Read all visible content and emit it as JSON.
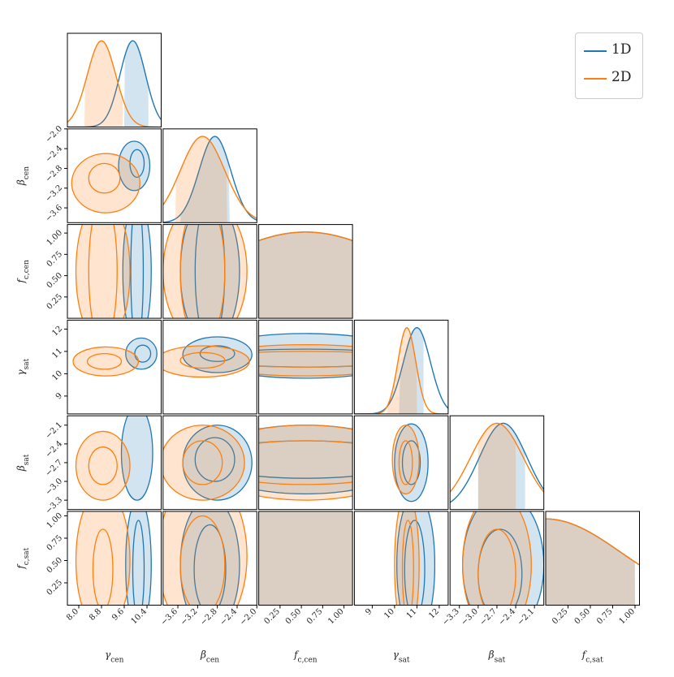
{
  "colors": {
    "1D": "#1f77b4",
    "2D": "#ff7f0e"
  },
  "legend": {
    "items": [
      {
        "label": "1D",
        "color": "#1f77b4"
      },
      {
        "label": "2D",
        "color": "#ff7f0e"
      }
    ]
  },
  "chart_data": {
    "type": "corner",
    "parameters": [
      {
        "key": "gcen",
        "label": "γ",
        "sub": "cen",
        "range": [
          7.6,
          10.9
        ],
        "ticks": [
          "8.0",
          "8.8",
          "9.6",
          "10.4"
        ],
        "tick_values": [
          8.0,
          8.8,
          9.6,
          10.4
        ]
      },
      {
        "key": "bcen",
        "label": "β",
        "sub": "cen",
        "range": [
          -3.9,
          -2.0
        ],
        "ticks": [
          "−3.6",
          "−3.2",
          "−2.8",
          "−2.4",
          "−2.0"
        ],
        "tick_values": [
          -3.6,
          -3.2,
          -2.8,
          -2.4,
          -2.0
        ]
      },
      {
        "key": "fccen",
        "label": "f",
        "sub": "c,cen",
        "range": [
          0.0,
          1.1
        ],
        "ticks": [
          "0.25",
          "0.50",
          "0.75",
          "1.00"
        ],
        "tick_values": [
          0.25,
          0.5,
          0.75,
          1.0
        ]
      },
      {
        "key": "gsat",
        "label": "γ",
        "sub": "sat",
        "range": [
          8.2,
          12.4
        ],
        "ticks": [
          "9",
          "10",
          "11",
          "12"
        ],
        "tick_values": [
          9,
          10,
          11,
          12
        ]
      },
      {
        "key": "bsat",
        "label": "β",
        "sub": "sat",
        "range": [
          -3.45,
          -1.95
        ],
        "ticks": [
          "−3.3",
          "−3.0",
          "−2.7",
          "−2.4",
          "−2.1"
        ],
        "tick_values": [
          -3.3,
          -3.0,
          -2.7,
          -2.4,
          -2.1
        ]
      },
      {
        "key": "fcsat",
        "label": "f",
        "sub": "c,sat",
        "range": [
          0.0,
          1.05
        ],
        "ticks": [
          "0.25",
          "0.50",
          "0.75",
          "1.00"
        ],
        "tick_values": [
          0.25,
          0.5,
          0.75,
          1.0
        ]
      }
    ],
    "series": [
      {
        "name": "1D",
        "marginals": [
          {
            "mean": 9.9,
            "sd": 0.45,
            "interval": [
              9.6,
              10.45
            ]
          },
          {
            "mean": -2.85,
            "sd": 0.32,
            "interval": [
              -3.55,
              -2.55
            ]
          },
          {
            "mean": 0.55,
            "sd": 1.2,
            "interval": [
              0.0,
              1.1
            ]
          },
          {
            "mean": 11.0,
            "sd": 0.6,
            "interval": [
              10.2,
              11.3
            ]
          },
          {
            "mean": -2.6,
            "sd": 0.38,
            "interval": [
              -3.0,
              -2.25
            ]
          },
          {
            "mean": 0.0,
            "sd": 0.85,
            "interval": [
              0.0,
              1.0
            ]
          }
        ],
        "contours": {
          "0-1": [
            {
              "cx": 9.95,
              "cy": -2.75,
              "rx": 0.55,
              "ry": 0.5,
              "fill": true
            },
            {
              "cx": 10.05,
              "cy": -2.7,
              "rx": 0.25,
              "ry": 0.28,
              "fill": false
            }
          ],
          "0-3": [
            {
              "cx": 10.2,
              "cy": 10.9,
              "rx": 0.55,
              "ry": 0.7,
              "fill": true
            },
            {
              "cx": 10.25,
              "cy": 10.9,
              "rx": 0.28,
              "ry": 0.38,
              "fill": false
            }
          ],
          "0-4": [
            {
              "cx": 10.05,
              "cy": -2.55,
              "rx": 0.55,
              "ry": 0.75,
              "fill": true
            }
          ],
          "0-2": [
            {
              "cx": 10.05,
              "cy": 0.55,
              "rx": 0.5,
              "ry": 0.85,
              "fill": true
            },
            {
              "cx": 10.05,
              "cy": 0.55,
              "rx": 0.22,
              "ry": 0.85,
              "fill": false
            }
          ],
          "0-5": [
            {
              "cx": 10.1,
              "cy": 0.45,
              "rx": 0.45,
              "ry": 0.75,
              "fill": true
            },
            {
              "cx": 10.1,
              "cy": 0.4,
              "rx": 0.2,
              "ry": 0.55,
              "fill": false
            }
          ],
          "1-2": [
            {
              "cx": -2.95,
              "cy": 0.55,
              "rx": 0.6,
              "ry": 0.85,
              "fill": true
            },
            {
              "cx": -2.95,
              "cy": 0.55,
              "rx": 0.3,
              "ry": 0.85,
              "fill": false
            }
          ],
          "1-3": [
            {
              "cx": -2.8,
              "cy": 10.85,
              "rx": 0.7,
              "ry": 0.8,
              "fill": true
            },
            {
              "cx": -2.8,
              "cy": 10.9,
              "rx": 0.35,
              "ry": 0.35,
              "fill": false
            }
          ],
          "1-4": [
            {
              "cx": -2.8,
              "cy": -2.7,
              "rx": 0.7,
              "ry": 0.6,
              "fill": true
            },
            {
              "cx": -2.85,
              "cy": -2.65,
              "rx": 0.4,
              "ry": 0.35,
              "fill": false
            }
          ],
          "1-5": [
            {
              "cx": -2.95,
              "cy": 0.45,
              "rx": 0.6,
              "ry": 0.75,
              "fill": true
            },
            {
              "cx": -2.95,
              "cy": 0.4,
              "rx": 0.32,
              "ry": 0.5,
              "fill": false
            }
          ],
          "2-3": [
            {
              "cx": 0.55,
              "cy": 10.8,
              "rx": 1.2,
              "ry": 1.0,
              "fill": true
            },
            {
              "cx": 0.55,
              "cy": 10.7,
              "rx": 1.2,
              "ry": 0.4,
              "fill": false
            }
          ],
          "2-4": [
            {
              "cx": 0.55,
              "cy": -2.65,
              "rx": 1.2,
              "ry": 0.55,
              "fill": true
            },
            {
              "cx": 0.55,
              "cy": -2.65,
              "rx": 1.2,
              "ry": 0.3,
              "fill": false
            }
          ],
          "2-5": [
            {
              "cx": 0.55,
              "cy": 0.5,
              "rx": 1.2,
              "ry": 1.0,
              "fill": true
            }
          ],
          "3-4": [
            {
              "cx": 10.75,
              "cy": -2.7,
              "rx": 0.75,
              "ry": 0.62,
              "fill": true
            },
            {
              "cx": 10.75,
              "cy": -2.7,
              "rx": 0.4,
              "ry": 0.35,
              "fill": false
            }
          ],
          "3-5": [
            {
              "cx": 10.95,
              "cy": 0.45,
              "rx": 0.85,
              "ry": 0.8,
              "fill": true
            },
            {
              "cx": 10.9,
              "cy": 0.4,
              "rx": 0.45,
              "ry": 0.55,
              "fill": false
            }
          ],
          "4-5": [
            {
              "cx": -2.6,
              "cy": 0.45,
              "rx": 0.65,
              "ry": 0.8,
              "fill": true
            },
            {
              "cx": -2.65,
              "cy": 0.35,
              "rx": 0.35,
              "ry": 0.5,
              "fill": false
            }
          ]
        }
      },
      {
        "name": "2D",
        "marginals": [
          {
            "mean": 8.8,
            "sd": 0.5,
            "interval": [
              8.2,
              9.55
            ]
          },
          {
            "mean": -3.1,
            "sd": 0.45,
            "interval": [
              -3.65,
              -2.6
            ]
          },
          {
            "mean": 0.55,
            "sd": 1.2,
            "interval": [
              0.0,
              1.1
            ]
          },
          {
            "mean": 10.55,
            "sd": 0.4,
            "interval": [
              9.65,
              11.0
            ]
          },
          {
            "mean": -2.7,
            "sd": 0.42,
            "interval": [
              -3.0,
              -2.4
            ]
          },
          {
            "mean": 0.0,
            "sd": 0.85,
            "interval": [
              0.0,
              1.0
            ]
          }
        ],
        "contours": {
          "0-1": [
            {
              "cx": 8.95,
              "cy": -3.1,
              "rx": 1.2,
              "ry": 0.6,
              "fill": true
            },
            {
              "cx": 8.9,
              "cy": -3.0,
              "rx": 0.55,
              "ry": 0.3,
              "fill": false
            }
          ],
          "0-3": [
            {
              "cx": 8.95,
              "cy": 10.55,
              "rx": 1.15,
              "ry": 0.65,
              "fill": true
            },
            {
              "cx": 8.9,
              "cy": 10.55,
              "rx": 0.6,
              "ry": 0.35,
              "fill": false
            }
          ],
          "0-4": [
            {
              "cx": 8.85,
              "cy": -2.75,
              "rx": 0.95,
              "ry": 0.55,
              "fill": true
            },
            {
              "cx": 8.85,
              "cy": -2.75,
              "rx": 0.5,
              "ry": 0.3,
              "fill": false
            }
          ],
          "0-2": [
            {
              "cx": 8.85,
              "cy": 0.55,
              "rx": 0.95,
              "ry": 0.85,
              "fill": true
            },
            {
              "cx": 8.85,
              "cy": 0.55,
              "rx": 0.5,
              "ry": 0.85,
              "fill": false
            }
          ],
          "0-5": [
            {
              "cx": 8.85,
              "cy": 0.5,
              "rx": 0.95,
              "ry": 0.8,
              "fill": true
            },
            {
              "cx": 8.85,
              "cy": 0.4,
              "rx": 0.35,
              "ry": 0.45,
              "fill": false
            }
          ],
          "1-2": [
            {
              "cx": -3.05,
              "cy": 0.55,
              "rx": 0.85,
              "ry": 0.85,
              "fill": true
            },
            {
              "cx": -3.1,
              "cy": 0.55,
              "rx": 0.45,
              "ry": 0.85,
              "fill": false
            }
          ],
          "1-3": [
            {
              "cx": -3.1,
              "cy": 10.55,
              "rx": 0.95,
              "ry": 0.7,
              "fill": true
            },
            {
              "cx": -3.1,
              "cy": 10.6,
              "rx": 0.45,
              "ry": 0.35,
              "fill": false
            }
          ],
          "1-4": [
            {
              "cx": -3.1,
              "cy": -2.7,
              "rx": 0.85,
              "ry": 0.6,
              "fill": true
            },
            {
              "cx": -3.1,
              "cy": -2.7,
              "rx": 0.4,
              "ry": 0.35,
              "fill": false
            }
          ],
          "1-5": [
            {
              "cx": -3.1,
              "cy": 0.55,
              "rx": 0.9,
              "ry": 0.9,
              "fill": true
            },
            {
              "cx": -3.1,
              "cy": 0.45,
              "rx": 0.45,
              "ry": 0.55,
              "fill": false
            }
          ],
          "2-3": [
            {
              "cx": 0.55,
              "cy": 10.6,
              "rx": 1.2,
              "ry": 0.7,
              "fill": true
            },
            {
              "cx": 0.55,
              "cy": 10.65,
              "rx": 1.2,
              "ry": 0.35,
              "fill": false
            }
          ],
          "2-4": [
            {
              "cx": 0.55,
              "cy": -2.7,
              "rx": 1.2,
              "ry": 0.6,
              "fill": true
            },
            {
              "cx": 0.55,
              "cy": -2.7,
              "rx": 1.2,
              "ry": 0.35,
              "fill": false
            }
          ],
          "2-5": [
            {
              "cx": 0.55,
              "cy": 0.5,
              "rx": 1.2,
              "ry": 1.0,
              "fill": true
            }
          ],
          "3-4": [
            {
              "cx": 10.5,
              "cy": -2.65,
              "rx": 0.6,
              "ry": 0.55,
              "fill": true
            },
            {
              "cx": 10.5,
              "cy": -2.7,
              "rx": 0.3,
              "ry": 0.35,
              "fill": false
            }
          ],
          "3-5": [
            {
              "cx": 10.55,
              "cy": 0.45,
              "rx": 0.55,
              "ry": 0.8,
              "fill": true
            },
            {
              "cx": 10.6,
              "cy": 0.4,
              "rx": 0.25,
              "ry": 0.55,
              "fill": false
            }
          ],
          "4-5": [
            {
              "cx": -2.7,
              "cy": 0.45,
              "rx": 0.55,
              "ry": 0.8,
              "fill": true
            },
            {
              "cx": -2.7,
              "cy": 0.35,
              "rx": 0.3,
              "ry": 0.5,
              "fill": false
            }
          ]
        }
      }
    ]
  }
}
